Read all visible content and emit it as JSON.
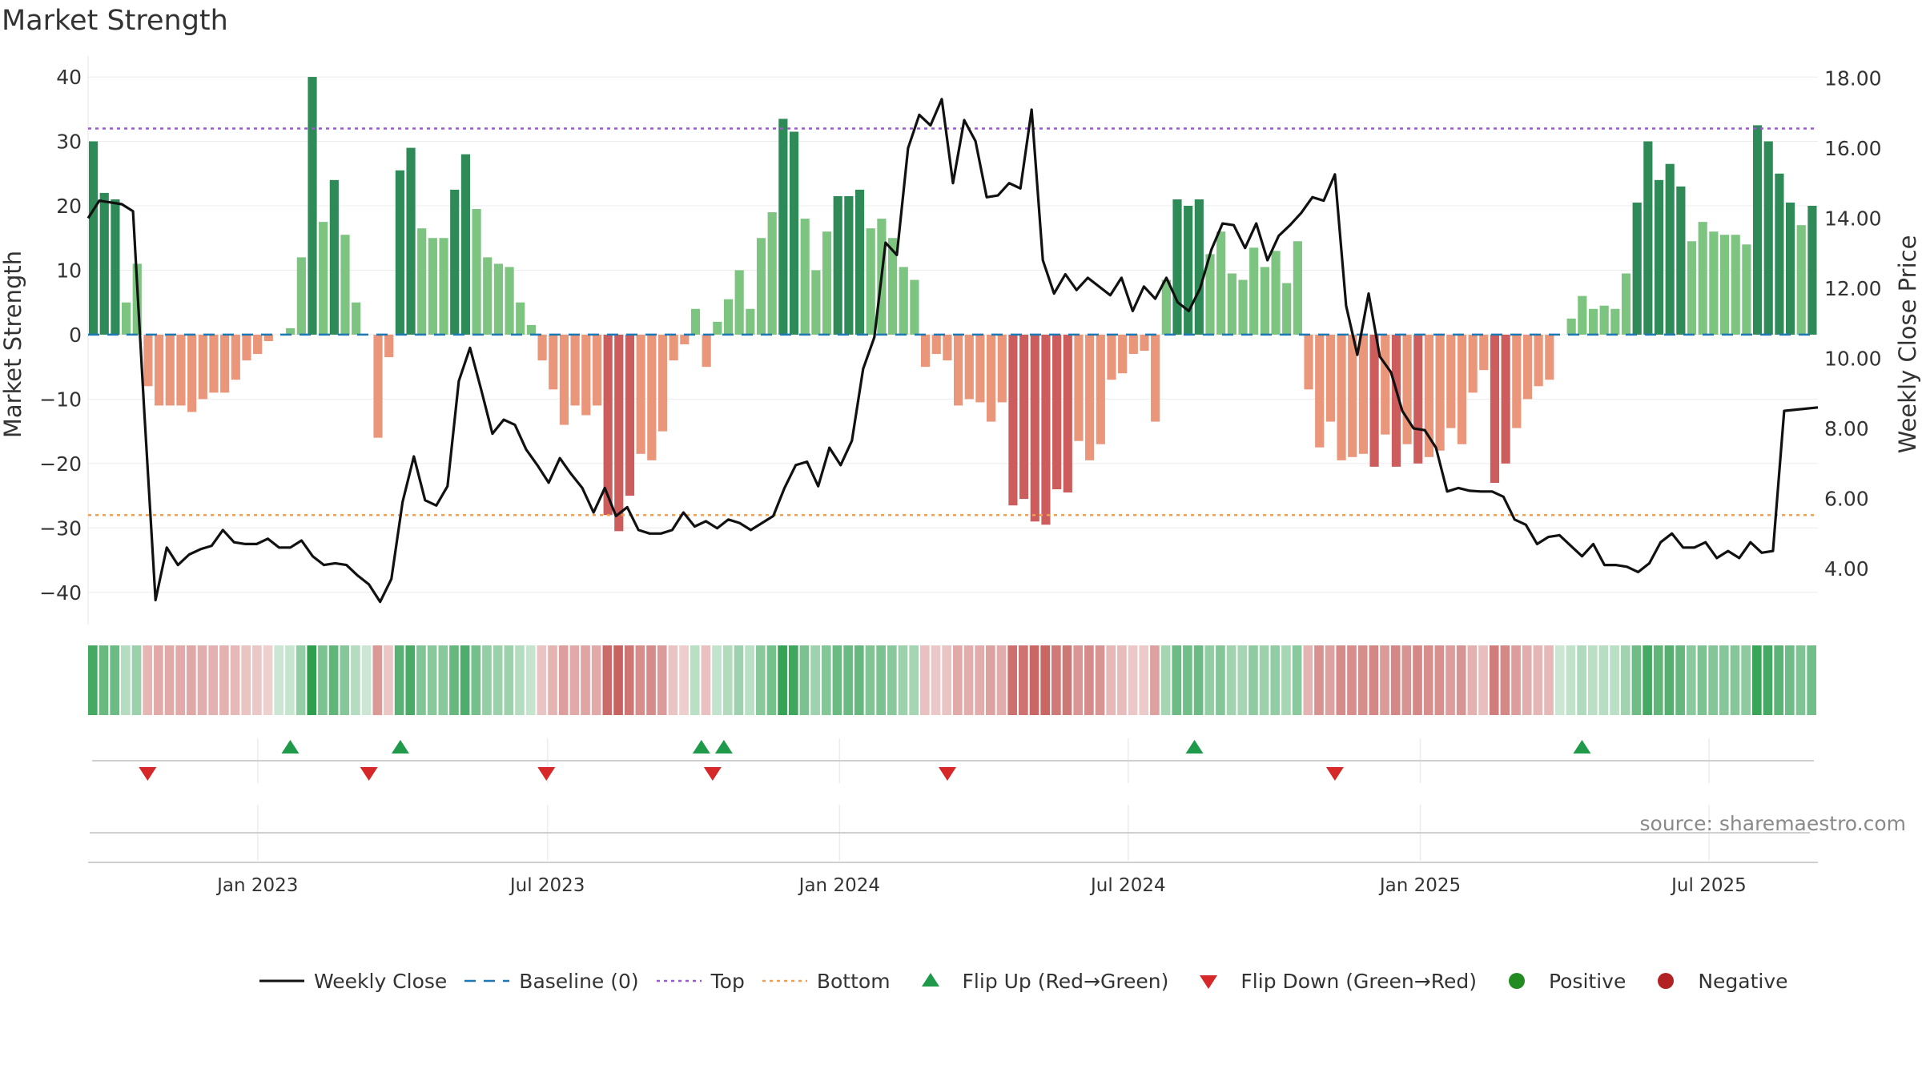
{
  "title": "Market Strength",
  "source": "source: sharemaestro.com",
  "colors": {
    "strong_green": "#2e8b57",
    "light_green": "#7cc47f",
    "strong_red": "#cd5c5c",
    "light_red": "#e9967a",
    "close_line": "#111111",
    "baseline": "#1f77b4",
    "top": "#9b59d0",
    "bottom": "#f0a050",
    "flip_up": "#1f9a4a",
    "flip_down": "#d62828",
    "positive": "#228b22",
    "negative": "#b22222"
  },
  "legend": [
    {
      "key": "close",
      "label": "Weekly Close"
    },
    {
      "key": "baseline",
      "label": "Baseline (0)"
    },
    {
      "key": "top",
      "label": "Top"
    },
    {
      "key": "bottom",
      "label": "Bottom"
    },
    {
      "key": "flip_up",
      "label": "Flip Up (Red→Green)"
    },
    {
      "key": "flip_down",
      "label": "Flip Down (Green→Red)"
    },
    {
      "key": "positive",
      "label": "Positive"
    },
    {
      "key": "negative",
      "label": "Negative"
    }
  ],
  "chart_data": {
    "type": "bar",
    "title": "Market Strength",
    "ylabel": "Market Strength",
    "y2label": "Weekly Close Price",
    "ylim": [
      -45,
      42
    ],
    "y2lim": [
      2.4,
      18.4
    ],
    "yticks": [
      "40",
      "30",
      "20",
      "10",
      "0",
      "−10",
      "−20",
      "−30",
      "−40"
    ],
    "y2ticks": [
      "18.00",
      "16.00",
      "14.00",
      "12.00",
      "10.00",
      "8.00",
      "6.00",
      "4.00"
    ],
    "xticks": [
      "Jan 2023",
      "Jul 2023",
      "Jan 2024",
      "Jul 2024",
      "Jan 2025",
      "Jul 2025"
    ],
    "x_range_weeks": [
      0,
      154
    ],
    "xtick_weeks": [
      15.1,
      40.9,
      66.9,
      92.6,
      118.6,
      144.3
    ],
    "top_line": 32,
    "bottom_line": -28,
    "baseline": 0,
    "strength": [
      30,
      22,
      21,
      5,
      11,
      -8,
      -11,
      -11,
      -11,
      -12,
      -10,
      -9,
      -9,
      -7,
      -4,
      -3,
      -1,
      0,
      1,
      12,
      40,
      17.5,
      24,
      15.5,
      5,
      0,
      -16,
      -3.5,
      25.5,
      29,
      16.5,
      15,
      15,
      22.5,
      28,
      19.5,
      12,
      11,
      10.5,
      5,
      1.5,
      -4,
      -8.5,
      -14,
      -11,
      -12.5,
      -11,
      -28,
      -30.5,
      -25,
      -18.5,
      -19.5,
      -15,
      -4,
      -1.5,
      4,
      -5,
      2,
      5.5,
      10,
      4,
      15,
      19,
      33.5,
      31.5,
      18,
      10,
      16,
      21.5,
      21.5,
      22.5,
      16.5,
      18,
      15,
      10.5,
      8.5,
      -5,
      -3,
      -4,
      -11,
      -10,
      -10.5,
      -13.5,
      -10.5,
      -26.5,
      -25.5,
      -29,
      -29.5,
      -24,
      -24.5,
      -16.5,
      -19.5,
      -17,
      -7,
      -6,
      -3,
      -2.5,
      -13.5,
      8.5,
      21,
      20,
      21,
      12.5,
      16,
      9.5,
      8.5,
      13.5,
      10.5,
      13,
      8,
      14.5,
      -8.5,
      -17.5,
      -13.5,
      -19.5,
      -19,
      -18.5,
      -20.5,
      -15.5,
      -20.5,
      -17,
      -20,
      -19,
      -18,
      -14.5,
      -17,
      -9,
      -5.5,
      -23,
      -20,
      -14.5,
      -10,
      -8,
      -7,
      0,
      2.5,
      6,
      4,
      4.5,
      4,
      9.5,
      20.5,
      30,
      24,
      26.5,
      23,
      14.5,
      17.5,
      16,
      15.5,
      15.5,
      14,
      32.5,
      30,
      25,
      20.5,
      17,
      20
    ],
    "close": [
      {
        "w": 0,
        "v": 14.0
      },
      {
        "w": 1,
        "v": 14.5
      },
      {
        "w": 2,
        "v": 14.45
      },
      {
        "w": 3,
        "v": 14.4
      },
      {
        "w": 4,
        "v": 14.2
      },
      {
        "w": 5,
        "v": 8.5
      },
      {
        "w": 6,
        "v": 3.1
      },
      {
        "w": 7,
        "v": 4.6
      },
      {
        "w": 8,
        "v": 4.1
      },
      {
        "w": 9,
        "v": 4.4
      },
      {
        "w": 10,
        "v": 4.55
      },
      {
        "w": 11,
        "v": 4.65
      },
      {
        "w": 12,
        "v": 5.1
      },
      {
        "w": 13,
        "v": 4.75
      },
      {
        "w": 14,
        "v": 4.7
      },
      {
        "w": 15,
        "v": 4.7
      },
      {
        "w": 16,
        "v": 4.85
      },
      {
        "w": 17,
        "v": 4.6
      },
      {
        "w": 18,
        "v": 4.6
      },
      {
        "w": 19,
        "v": 4.8
      },
      {
        "w": 20,
        "v": 4.35
      },
      {
        "w": 21,
        "v": 4.1
      },
      {
        "w": 22,
        "v": 4.15
      },
      {
        "w": 23,
        "v": 4.1
      },
      {
        "w": 24,
        "v": 3.8
      },
      {
        "w": 25,
        "v": 3.55
      },
      {
        "w": 26,
        "v": 3.05
      },
      {
        "w": 27,
        "v": 3.7
      },
      {
        "w": 28,
        "v": 5.9
      },
      {
        "w": 29,
        "v": 7.2
      },
      {
        "w": 30,
        "v": 5.95
      },
      {
        "w": 31,
        "v": 5.8
      },
      {
        "w": 32,
        "v": 6.35
      },
      {
        "w": 33,
        "v": 9.35
      },
      {
        "w": 34,
        "v": 10.3
      },
      {
        "w": 35,
        "v": 9.1
      },
      {
        "w": 36,
        "v": 7.85
      },
      {
        "w": 37,
        "v": 8.25
      },
      {
        "w": 38,
        "v": 8.1
      },
      {
        "w": 39,
        "v": 7.4
      },
      {
        "w": 40,
        "v": 6.95
      },
      {
        "w": 41,
        "v": 6.45
      },
      {
        "w": 42,
        "v": 7.15
      },
      {
        "w": 43,
        "v": 6.7
      },
      {
        "w": 44,
        "v": 6.3
      },
      {
        "w": 45,
        "v": 5.6
      },
      {
        "w": 46,
        "v": 6.3
      },
      {
        "w": 47,
        "v": 5.5
      },
      {
        "w": 48,
        "v": 5.75
      },
      {
        "w": 49,
        "v": 5.1
      },
      {
        "w": 50,
        "v": 5.0
      },
      {
        "w": 51,
        "v": 5.0
      },
      {
        "w": 52,
        "v": 5.1
      },
      {
        "w": 53,
        "v": 5.6
      },
      {
        "w": 54,
        "v": 5.2
      },
      {
        "w": 55,
        "v": 5.35
      },
      {
        "w": 56,
        "v": 5.15
      },
      {
        "w": 57,
        "v": 5.4
      },
      {
        "w": 58,
        "v": 5.3
      },
      {
        "w": 59,
        "v": 5.1
      },
      {
        "w": 60,
        "v": 5.3
      },
      {
        "w": 61,
        "v": 5.5
      },
      {
        "w": 62,
        "v": 6.3
      },
      {
        "w": 63,
        "v": 6.95
      },
      {
        "w": 64,
        "v": 7.05
      },
      {
        "w": 65,
        "v": 6.35
      },
      {
        "w": 66,
        "v": 7.45
      },
      {
        "w": 67,
        "v": 6.95
      },
      {
        "w": 68,
        "v": 7.65
      },
      {
        "w": 69,
        "v": 9.7
      },
      {
        "w": 70,
        "v": 10.6
      },
      {
        "w": 71,
        "v": 13.3
      },
      {
        "w": 72,
        "v": 12.95
      },
      {
        "w": 73,
        "v": 16.0
      },
      {
        "w": 74,
        "v": 16.95
      },
      {
        "w": 75,
        "v": 16.65
      },
      {
        "w": 76,
        "v": 17.4
      },
      {
        "w": 77,
        "v": 15.0
      },
      {
        "w": 78,
        "v": 16.8
      },
      {
        "w": 79,
        "v": 16.2
      },
      {
        "w": 80,
        "v": 14.6
      },
      {
        "w": 81,
        "v": 14.65
      },
      {
        "w": 82,
        "v": 15.0
      },
      {
        "w": 83,
        "v": 14.85
      },
      {
        "w": 84,
        "v": 17.1
      },
      {
        "w": 85,
        "v": 12.8
      },
      {
        "w": 86,
        "v": 11.85
      },
      {
        "w": 87,
        "v": 12.4
      },
      {
        "w": 88,
        "v": 11.95
      },
      {
        "w": 89,
        "v": 12.3
      },
      {
        "w": 90,
        "v": 12.05
      },
      {
        "w": 91,
        "v": 11.8
      },
      {
        "w": 92,
        "v": 12.3
      },
      {
        "w": 93,
        "v": 11.35
      },
      {
        "w": 94,
        "v": 12.05
      },
      {
        "w": 95,
        "v": 11.7
      },
      {
        "w": 96,
        "v": 12.3
      },
      {
        "w": 97,
        "v": 11.6
      },
      {
        "w": 98,
        "v": 11.35
      },
      {
        "w": 99,
        "v": 12.0
      },
      {
        "w": 100,
        "v": 13.1
      },
      {
        "w": 101,
        "v": 13.85
      },
      {
        "w": 102,
        "v": 13.8
      },
      {
        "w": 103,
        "v": 13.15
      },
      {
        "w": 104,
        "v": 13.85
      },
      {
        "w": 105,
        "v": 12.8
      },
      {
        "w": 106,
        "v": 13.5
      },
      {
        "w": 107,
        "v": 13.8
      },
      {
        "w": 108,
        "v": 14.15
      },
      {
        "w": 109,
        "v": 14.6
      },
      {
        "w": 110,
        "v": 14.5
      },
      {
        "w": 111,
        "v": 15.25
      },
      {
        "w": 112,
        "v": 11.5
      },
      {
        "w": 113,
        "v": 10.1
      },
      {
        "w": 114,
        "v": 11.85
      },
      {
        "w": 115,
        "v": 10.05
      },
      {
        "w": 116,
        "v": 9.6
      },
      {
        "w": 117,
        "v": 8.5
      },
      {
        "w": 118,
        "v": 8.0
      },
      {
        "w": 119,
        "v": 7.95
      },
      {
        "w": 120,
        "v": 7.45
      },
      {
        "w": 121,
        "v": 6.2
      },
      {
        "w": 122,
        "v": 6.3
      },
      {
        "w": 123,
        "v": 6.22
      },
      {
        "w": 124,
        "v": 6.2
      },
      {
        "w": 125,
        "v": 6.2
      },
      {
        "w": 126,
        "v": 6.05
      },
      {
        "w": 127,
        "v": 5.4
      },
      {
        "w": 128,
        "v": 5.25
      },
      {
        "w": 129,
        "v": 4.7
      },
      {
        "w": 130,
        "v": 4.9
      },
      {
        "w": 131,
        "v": 4.95
      },
      {
        "w": 132,
        "v": 4.65
      },
      {
        "w": 133,
        "v": 4.35
      },
      {
        "w": 134,
        "v": 4.7
      },
      {
        "w": 135,
        "v": 4.1
      },
      {
        "w": 136,
        "v": 4.1
      },
      {
        "w": 137,
        "v": 4.05
      },
      {
        "w": 138,
        "v": 3.9
      },
      {
        "w": 139,
        "v": 4.15
      },
      {
        "w": 140,
        "v": 4.75
      },
      {
        "w": 141,
        "v": 5.0
      },
      {
        "w": 142,
        "v": 4.6
      },
      {
        "w": 143,
        "v": 4.6
      },
      {
        "w": 144,
        "v": 4.75
      },
      {
        "w": 145,
        "v": 4.3
      },
      {
        "w": 146,
        "v": 4.5
      },
      {
        "w": 147,
        "v": 4.3
      },
      {
        "w": 148,
        "v": 4.75
      },
      {
        "w": 149,
        "v": 4.45
      },
      {
        "w": 150,
        "v": 4.5
      },
      {
        "w": 151,
        "v": 8.5
      },
      {
        "w": 154,
        "v": 8.6
      }
    ],
    "flip_up_weeks": [
      18,
      27.8,
      54.6,
      56.6,
      98.5,
      133
    ],
    "flip_down_weeks": [
      5.3,
      25,
      40.8,
      55.6,
      76.5,
      111
    ],
    "bands": {
      "strong_min": 20
    },
    "legend_position": "bottom"
  }
}
